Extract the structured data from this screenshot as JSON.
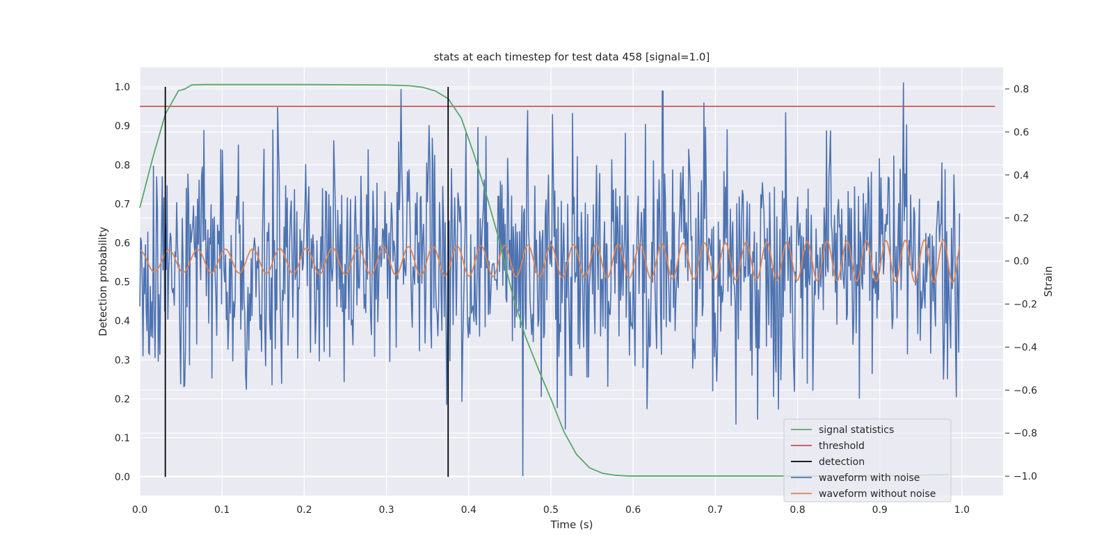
{
  "chart_data": {
    "type": "line",
    "title": "stats at each timestep for test data 458 [signal=1.0]",
    "xlabel": "Time (s)",
    "ylabel_left": "Detection probability",
    "ylabel_right": "Strain",
    "xlim": [
      0.0,
      1.05
    ],
    "ylim_left": [
      -0.048,
      1.05
    ],
    "ylim_right": [
      -1.09,
      0.9
    ],
    "x_ticks": [
      "0.0",
      "0.1",
      "0.2",
      "0.3",
      "0.4",
      "0.5",
      "0.6",
      "0.7",
      "0.8",
      "0.9",
      "1.0"
    ],
    "y_left_ticks": [
      "0.0",
      "0.1",
      "0.2",
      "0.3",
      "0.4",
      "0.5",
      "0.6",
      "0.7",
      "0.8",
      "0.9",
      "1.0"
    ],
    "y_right_ticks": [
      "−1.0",
      "−0.8",
      "−0.6",
      "−0.4",
      "−0.2",
      "0.0",
      "0.2",
      "0.4",
      "0.6",
      "0.8"
    ],
    "grid": true,
    "legend_position": "lower-right",
    "colors": {
      "background": "#eaeaf2",
      "grid": "#ffffff",
      "signal_statistics": "#55a868",
      "threshold": "#c44e52",
      "detection": "#000000",
      "waveform_with_noise": "#4c72b0",
      "waveform_without_noise": "#dd8452"
    },
    "series": [
      {
        "name": "signal statistics",
        "axis": "left",
        "x": [
          0.0,
          0.016,
          0.031,
          0.047,
          0.055,
          0.063,
          0.078,
          0.094,
          0.2,
          0.3,
          0.328,
          0.344,
          0.359,
          0.375,
          0.391,
          0.406,
          0.422,
          0.438,
          0.453,
          0.469,
          0.484,
          0.5,
          0.516,
          0.531,
          0.547,
          0.563,
          0.578,
          0.594,
          0.609,
          0.7,
          0.8,
          0.9,
          0.984
        ],
        "y": [
          0.69,
          0.82,
          0.93,
          0.99,
          0.995,
          1.005,
          1.006,
          1.006,
          1.006,
          1.005,
          1.003,
          0.999,
          0.99,
          0.97,
          0.92,
          0.83,
          0.72,
          0.6,
          0.47,
          0.36,
          0.28,
          0.2,
          0.115,
          0.058,
          0.023,
          0.009,
          0.004,
          0.002,
          0.002,
          0.002,
          0.002,
          0.002,
          0.006
        ]
      },
      {
        "name": "threshold",
        "axis": "left",
        "x": [
          0.0,
          1.04
        ],
        "y": [
          0.95,
          0.95
        ]
      },
      {
        "name": "detection",
        "axis": "left",
        "segments": [
          {
            "x": 0.031,
            "y": [
              0.0,
              1.0
            ]
          },
          {
            "x": 0.375,
            "y": [
              0.0,
              1.0
            ]
          }
        ]
      },
      {
        "name": "waveform with noise",
        "axis": "right",
        "x_range": [
          0.0,
          0.997
        ],
        "points": 1024,
        "y_range": [
          -1.0,
          0.83
        ],
        "note_peaks": [
          [
            0.929,
            0.83
          ],
          [
            0.466,
            -1.0
          ],
          [
            0.318,
            0.8
          ],
          [
            0.636,
            0.79
          ]
        ]
      },
      {
        "name": "waveform without noise",
        "axis": "right",
        "x_range": [
          0.0,
          0.997
        ],
        "amplitude_start": 0.05,
        "amplitude_end": 0.1,
        "frequency_start_hz": 28,
        "frequency_end_hz": 44,
        "y_start": 0.05,
        "y_end": 0.1
      }
    ]
  }
}
